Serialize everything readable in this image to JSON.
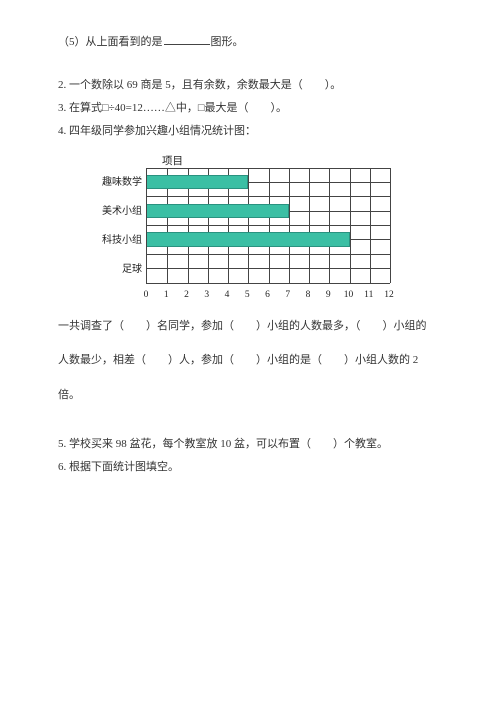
{
  "q5": {
    "prefix": "（5）从上面看到的是",
    "suffix": "图形。"
  },
  "q2": "2. 一个数除以 69 商是 5，且有余数，余数最大是（　　）。",
  "q3": "3. 在算式□÷40=12……△中，□最大是（　　）。",
  "q4_intro": "4. 四年级同学参加兴趣小组情况统计图：",
  "chart": {
    "title": "项目",
    "type": "bar",
    "orientation": "horizontal",
    "xlim": [
      0,
      12
    ],
    "xtick_step": 1,
    "ytick_step": 1,
    "hcells": 8,
    "bar_color": "#3bbfa4",
    "grid_color": "#444444",
    "background_color": "#ffffff",
    "categories": [
      "趣味数学",
      "美术小组",
      "科技小组",
      "足球"
    ],
    "values": [
      5,
      7,
      10,
      0
    ],
    "xticks": [
      0,
      1,
      2,
      3,
      4,
      5,
      6,
      7,
      8,
      9,
      10,
      11,
      12
    ]
  },
  "q4_line1": "一共调查了（　　）名同学，参加（　　）小组的人数最多，（　　）小组的",
  "q4_line2": "人数最少，相差（　　）人，参加（　　）小组的是（　　）小组人数的 2",
  "q4_line3": "倍。",
  "q5b": "5. 学校买来 98 盆花，每个教室放 10 盆，可以布置（　　）个教室。",
  "q6": "6. 根据下面统计图填空。"
}
